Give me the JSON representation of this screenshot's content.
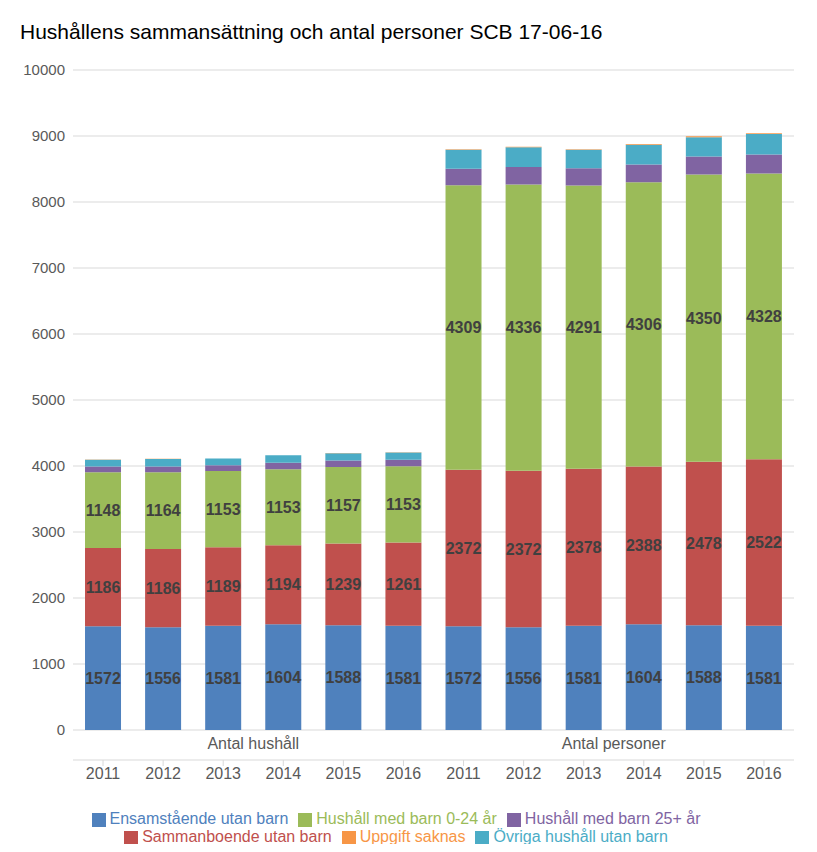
{
  "chart_data": {
    "type": "bar",
    "title": "Hushållens sammansättning och antal personer SCB 17-06-16",
    "categories": [
      "2011",
      "2012",
      "2013",
      "2014",
      "2015",
      "2016",
      "2011",
      "2012",
      "2013",
      "2014",
      "2015",
      "2016"
    ],
    "category_groups": [
      {
        "label": "Antal hushåll",
        "count": 6
      },
      {
        "label": "Antal personer",
        "count": 6
      }
    ],
    "stacked": true,
    "grid": true,
    "legend": "bottom",
    "ylim": [
      0,
      10000
    ],
    "yticks": [
      0,
      1000,
      2000,
      3000,
      4000,
      5000,
      6000,
      7000,
      8000,
      9000,
      10000
    ],
    "series": [
      {
        "name": "Ensamstående utan barn",
        "color": "#4f81bd",
        "data_labels": true,
        "values": [
          1572,
          1556,
          1581,
          1604,
          1588,
          1581,
          1572,
          1556,
          1581,
          1604,
          1588,
          1581
        ]
      },
      {
        "name": "Sammanboende utan barn",
        "color": "#c0504d",
        "data_labels": true,
        "values": [
          1186,
          1186,
          1189,
          1194,
          1239,
          1261,
          2372,
          2372,
          2378,
          2388,
          2478,
          2522
        ]
      },
      {
        "name": "Hushåll med barn 0-24 år",
        "color": "#9bbb59",
        "data_labels": true,
        "values": [
          1148,
          1164,
          1153,
          1153,
          1157,
          1153,
          4309,
          4336,
          4291,
          4306,
          4350,
          4328
        ]
      },
      {
        "name": "Hushåll med barn 25+ år",
        "color": "#8064a2",
        "values": [
          85,
          85,
          90,
          100,
          100,
          100,
          250,
          265,
          260,
          270,
          275,
          290
        ]
      },
      {
        "name": "Övriga hushåll utan barn",
        "color": "#4bacc6",
        "values": [
          105,
          115,
          100,
          110,
          110,
          110,
          290,
          300,
          280,
          300,
          290,
          310
        ]
      },
      {
        "name": "Uppgift saknas",
        "color": "#f79646",
        "values": [
          2,
          2,
          2,
          2,
          3,
          3,
          8,
          8,
          8,
          10,
          15,
          10
        ]
      }
    ]
  }
}
